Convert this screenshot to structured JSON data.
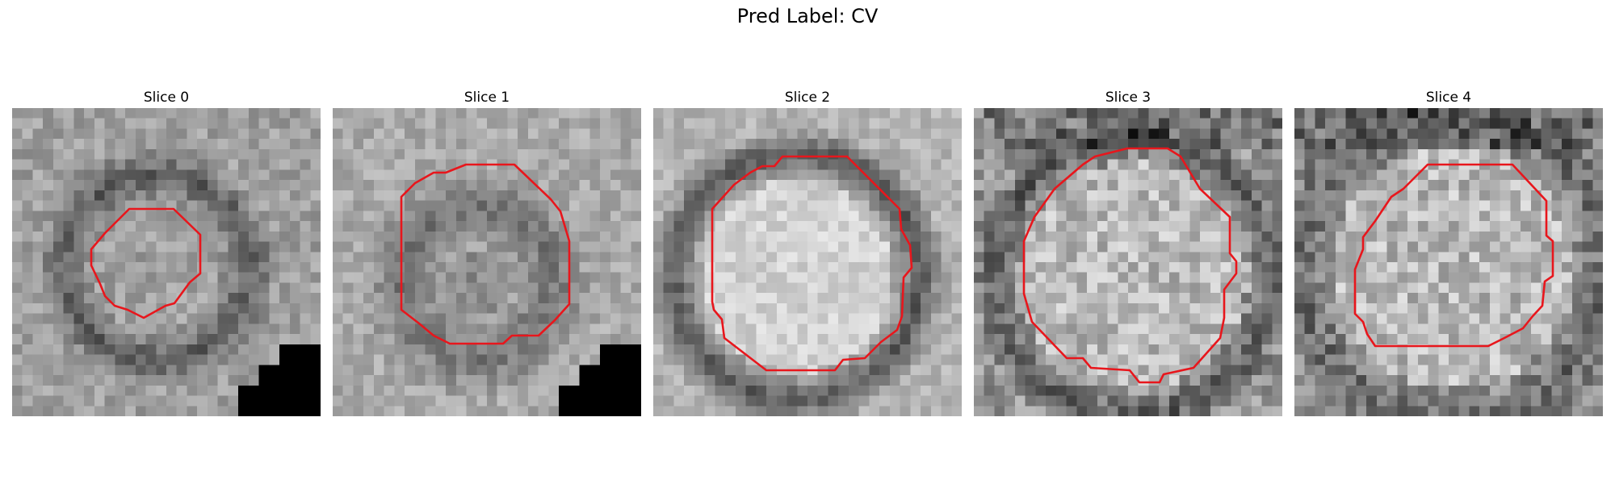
{
  "figure": {
    "title": "Pred Label: CV"
  },
  "slices": [
    {
      "title": "Slice 0",
      "contour_color": "#e8161c"
    },
    {
      "title": "Slice 1",
      "contour_color": "#e8161c"
    },
    {
      "title": "Slice 2",
      "contour_color": "#e8161c"
    },
    {
      "title": "Slice 3",
      "contour_color": "#e8161c"
    },
    {
      "title": "Slice 4",
      "contour_color": "#e8161c"
    }
  ]
}
